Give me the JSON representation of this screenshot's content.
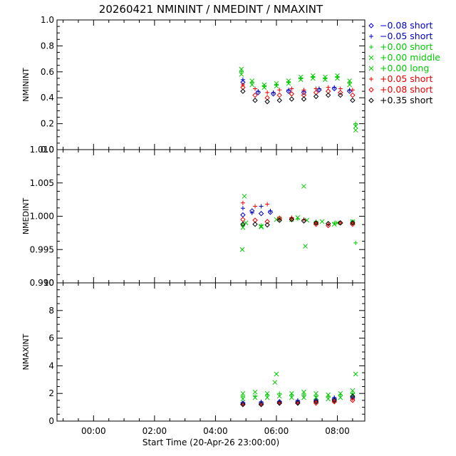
{
  "title": "20260421 NMININT / NMEDINT / NMAXINT",
  "xlabel": "Start Time (20-Apr-26 23:00:00)",
  "legend": [
    {
      "label": "−0.08 short",
      "color": "#0000cc",
      "symbol": "diamond"
    },
    {
      "label": "−0.05 short",
      "color": "#0000cc",
      "symbol": "plus"
    },
    {
      "label": "+0.00 short",
      "color": "#00cc00",
      "symbol": "plus"
    },
    {
      "label": "+0.00 middle",
      "color": "#00cc00",
      "symbol": "cross"
    },
    {
      "label": "+0.00 long",
      "color": "#00cc00",
      "symbol": "cross"
    },
    {
      "label": "+0.05 short",
      "color": "#ee0000",
      "symbol": "plus"
    },
    {
      "label": "+0.08 short",
      "color": "#ee0000",
      "symbol": "diamond"
    },
    {
      "label": "+0.35 short",
      "color": "#000000",
      "symbol": "diamond"
    }
  ],
  "chart_data": [
    {
      "type": "scatter",
      "ylabel": "NMININT",
      "xlim_hours": [
        -1.2,
        8.9
      ],
      "ylim": [
        0.0,
        1.0
      ],
      "yticks": [
        "0.0",
        "0.2",
        "0.4",
        "0.6",
        "0.8",
        "1.0"
      ],
      "xticks": [
        "00:00",
        "02:00",
        "04:00",
        "06:00",
        "08:00"
      ],
      "series": [
        {
          "name": "−0.08 short",
          "color": "#0000cc",
          "symbol": "diamond",
          "x": [
            4.9,
            5.4,
            5.9,
            6.4,
            6.9,
            7.4,
            7.9,
            8.4
          ],
          "y": [
            0.52,
            0.44,
            0.43,
            0.45,
            0.44,
            0.46,
            0.47,
            0.45
          ]
        },
        {
          "name": "−0.05 short",
          "color": "#0000cc",
          "symbol": "plus",
          "x": [
            4.9,
            5.4,
            5.9,
            6.4,
            6.9,
            7.4,
            7.9,
            8.4
          ],
          "y": [
            0.54,
            0.45,
            0.44,
            0.46,
            0.45,
            0.47,
            0.48,
            0.46
          ]
        },
        {
          "name": "+0.00 short",
          "color": "#00cc00",
          "symbol": "plus",
          "x": [
            4.85,
            5.2,
            5.6,
            6.0,
            6.4,
            6.8,
            7.2,
            7.6,
            8.0,
            8.4,
            8.6
          ],
          "y": [
            0.6,
            0.52,
            0.49,
            0.5,
            0.52,
            0.55,
            0.56,
            0.55,
            0.56,
            0.52,
            0.2
          ]
        },
        {
          "name": "+0.00 middle",
          "color": "#00cc00",
          "symbol": "cross",
          "x": [
            4.85,
            5.2,
            5.6,
            6.0,
            6.4,
            6.8,
            7.2,
            7.6,
            8.0,
            8.4,
            8.6
          ],
          "y": [
            0.62,
            0.53,
            0.5,
            0.51,
            0.53,
            0.56,
            0.57,
            0.56,
            0.57,
            0.53,
            0.15
          ]
        },
        {
          "name": "+0.00 long",
          "color": "#00cc00",
          "symbol": "cross",
          "x": [
            4.85,
            5.2,
            5.6,
            6.0,
            6.4,
            6.8,
            7.2,
            7.6,
            8.0,
            8.4,
            8.6
          ],
          "y": [
            0.58,
            0.5,
            0.48,
            0.49,
            0.51,
            0.54,
            0.55,
            0.54,
            0.55,
            0.5,
            0.18
          ]
        },
        {
          "name": "+0.05 short",
          "color": "#ee0000",
          "symbol": "plus",
          "x": [
            4.9,
            5.3,
            5.7,
            6.1,
            6.5,
            6.9,
            7.3,
            7.7,
            8.1,
            8.5
          ],
          "y": [
            0.5,
            0.47,
            0.44,
            0.46,
            0.47,
            0.46,
            0.47,
            0.48,
            0.47,
            0.46
          ]
        },
        {
          "name": "+0.08 short",
          "color": "#ee0000",
          "symbol": "diamond",
          "x": [
            4.9,
            5.3,
            5.7,
            6.1,
            6.5,
            6.9,
            7.3,
            7.7,
            8.1,
            8.5
          ],
          "y": [
            0.48,
            0.42,
            0.4,
            0.42,
            0.43,
            0.42,
            0.44,
            0.45,
            0.44,
            0.42
          ]
        },
        {
          "name": "+0.35 short",
          "color": "#000000",
          "symbol": "diamond",
          "x": [
            4.9,
            5.3,
            5.7,
            6.1,
            6.5,
            6.9,
            7.3,
            7.7,
            8.1,
            8.5
          ],
          "y": [
            0.45,
            0.38,
            0.37,
            0.38,
            0.39,
            0.39,
            0.41,
            0.42,
            0.42,
            0.38
          ]
        }
      ]
    },
    {
      "type": "scatter",
      "ylabel": "NMEDINT",
      "xlim_hours": [
        -1.2,
        8.9
      ],
      "ylim": [
        0.99,
        1.01
      ],
      "yticks": [
        "0.990",
        "0.995",
        "1.000",
        "1.005",
        "1.010"
      ],
      "xticks": [
        "00:00",
        "02:00",
        "04:00",
        "06:00",
        "08:00"
      ],
      "series": [
        {
          "name": "−0.08 short",
          "color": "#0000cc",
          "symbol": "diamond",
          "x": [
            4.9,
            5.2,
            5.5,
            5.8
          ],
          "y": [
            1.0002,
            1.0008,
            1.0004,
            1.0006
          ]
        },
        {
          "name": "−0.05 short",
          "color": "#0000cc",
          "symbol": "plus",
          "x": [
            4.9,
            5.2,
            5.5,
            5.8
          ],
          "y": [
            1.0012,
            1.0005,
            1.0015,
            1.0008
          ]
        },
        {
          "name": "+0.00 short",
          "color": "#00cc00",
          "symbol": "plus",
          "x": [
            4.9,
            5.5,
            6.1,
            6.7,
            7.3,
            7.9,
            8.5,
            8.6
          ],
          "y": [
            0.9988,
            0.9986,
            0.9995,
            0.9996,
            0.9992,
            0.999,
            0.9992,
            0.996
          ]
        },
        {
          "name": "+0.00 middle",
          "color": "#00cc00",
          "symbol": "cross",
          "x": [
            4.88,
            4.95,
            5.0,
            5.5,
            6.0,
            6.5,
            6.9,
            6.95,
            7.0,
            7.5,
            8.0,
            8.5
          ],
          "y": [
            0.995,
            1.003,
            0.999,
            0.9985,
            0.9995,
            0.9995,
            1.0045,
            0.9955,
            0.9994,
            0.9992,
            0.999,
            0.9992
          ]
        },
        {
          "name": "+0.00 long",
          "color": "#00cc00",
          "symbol": "cross",
          "x": [
            4.9,
            5.5,
            6.1,
            6.7,
            7.3,
            7.9,
            8.5
          ],
          "y": [
            0.9983,
            0.9984,
            0.9996,
            0.9998,
            0.999,
            0.9988,
            0.999
          ]
        },
        {
          "name": "+0.05 short",
          "color": "#ee0000",
          "symbol": "plus",
          "x": [
            4.9,
            5.3,
            5.7,
            6.1,
            6.5,
            6.9,
            7.3,
            7.7,
            8.1,
            8.5
          ],
          "y": [
            1.002,
            1.0015,
            1.0018,
            0.9996,
            0.9998,
            0.9995,
            0.999,
            0.9988,
            0.999,
            0.999
          ]
        },
        {
          "name": "+0.08 short",
          "color": "#ee0000",
          "symbol": "diamond",
          "x": [
            4.9,
            5.3,
            5.7,
            6.1,
            6.5,
            6.9,
            7.3,
            7.7,
            8.1,
            8.5
          ],
          "y": [
            0.9995,
            0.9994,
            0.9992,
            0.9997,
            0.9996,
            0.9993,
            0.9988,
            0.9986,
            0.999,
            0.9988
          ]
        },
        {
          "name": "+0.35 short",
          "color": "#000000",
          "symbol": "diamond",
          "x": [
            4.9,
            5.3,
            5.7,
            6.1,
            6.5,
            6.9,
            7.3,
            7.7,
            8.1,
            8.5
          ],
          "y": [
            0.9988,
            0.9988,
            0.9987,
            0.9994,
            0.9995,
            0.9993,
            0.999,
            0.9989,
            0.999,
            0.999
          ]
        }
      ]
    },
    {
      "type": "scatter",
      "ylabel": "NMAXINT",
      "xlim_hours": [
        -1.2,
        8.9
      ],
      "ylim": [
        0,
        10
      ],
      "yticks": [
        "0",
        "2",
        "4",
        "6",
        "8",
        "10"
      ],
      "xticks": [
        "00:00",
        "02:00",
        "04:00",
        "06:00",
        "08:00"
      ],
      "series": [
        {
          "name": "−0.08 short",
          "color": "#0000cc",
          "symbol": "diamond",
          "x": [
            4.9,
            5.5,
            6.1,
            6.7,
            7.3,
            7.9,
            8.5
          ],
          "y": [
            1.3,
            1.3,
            1.4,
            1.4,
            1.5,
            1.6,
            1.7
          ]
        },
        {
          "name": "−0.05 short",
          "color": "#0000cc",
          "symbol": "plus",
          "x": [
            4.9,
            5.5,
            6.1,
            6.7,
            7.3,
            7.9,
            8.5
          ],
          "y": [
            1.3,
            1.4,
            1.4,
            1.5,
            1.5,
            1.7,
            1.8
          ]
        },
        {
          "name": "+0.00 short",
          "color": "#00cc00",
          "symbol": "plus",
          "x": [
            4.9,
            5.3,
            5.7,
            6.1,
            6.5,
            6.9,
            7.3,
            7.7,
            8.1,
            8.5
          ],
          "y": [
            1.8,
            1.8,
            1.9,
            2.0,
            1.9,
            1.9,
            1.8,
            1.8,
            1.9,
            2.0
          ]
        },
        {
          "name": "+0.00 middle",
          "color": "#00cc00",
          "symbol": "cross",
          "x": [
            4.9,
            5.3,
            5.7,
            5.95,
            6.0,
            6.5,
            6.9,
            7.3,
            7.7,
            8.1,
            8.5,
            8.6
          ],
          "y": [
            2.0,
            2.1,
            2.0,
            2.8,
            3.4,
            2.0,
            2.1,
            2.0,
            1.9,
            2.0,
            2.2,
            3.4
          ]
        },
        {
          "name": "+0.00 long",
          "color": "#00cc00",
          "symbol": "cross",
          "x": [
            4.9,
            5.3,
            5.7,
            6.1,
            6.5,
            6.9,
            7.3,
            7.7,
            8.1,
            8.5
          ],
          "y": [
            1.6,
            1.7,
            1.7,
            1.8,
            1.7,
            1.7,
            1.7,
            1.6,
            1.7,
            1.9
          ]
        },
        {
          "name": "+0.05 short",
          "color": "#ee0000",
          "symbol": "plus",
          "x": [
            4.9,
            5.5,
            6.1,
            6.7,
            7.3,
            7.9,
            8.5
          ],
          "y": [
            1.2,
            1.2,
            1.3,
            1.3,
            1.4,
            1.4,
            1.6
          ]
        },
        {
          "name": "+0.08 short",
          "color": "#ee0000",
          "symbol": "diamond",
          "x": [
            4.9,
            5.5,
            6.1,
            6.7,
            7.3,
            7.9,
            8.5
          ],
          "y": [
            1.2,
            1.2,
            1.3,
            1.3,
            1.3,
            1.4,
            1.5
          ]
        },
        {
          "name": "+0.35 short",
          "color": "#000000",
          "symbol": "diamond",
          "x": [
            4.9,
            5.5,
            6.1,
            6.7,
            7.3,
            7.9,
            8.5
          ],
          "y": [
            1.2,
            1.2,
            1.3,
            1.3,
            1.4,
            1.5,
            1.8
          ]
        }
      ]
    }
  ]
}
